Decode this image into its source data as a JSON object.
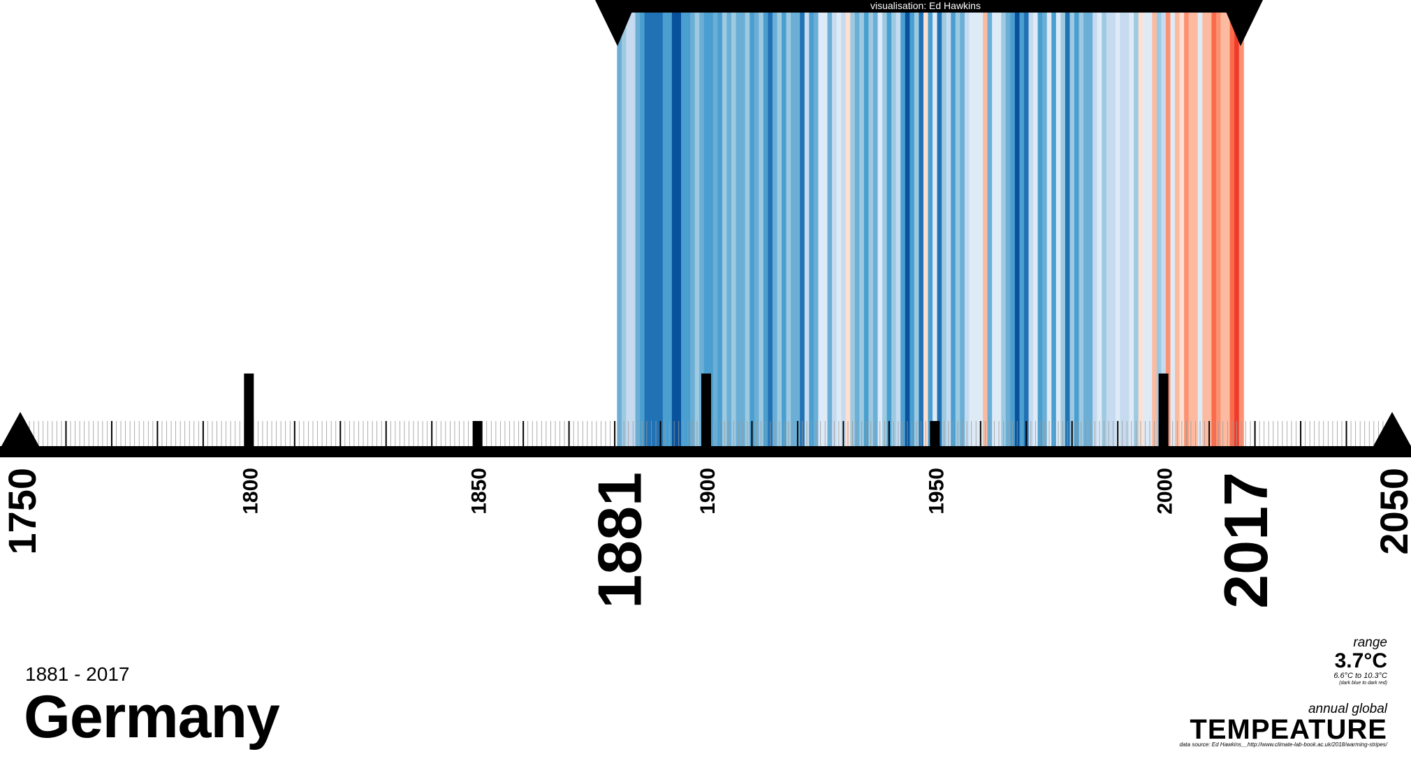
{
  "chart_data": {
    "type": "heatmap",
    "subtype": "warming-stripes",
    "title": "Germany",
    "subtitle": "1881 - 2017",
    "start_year": 1881,
    "end_year": 2017,
    "axis": {
      "xlim": [
        1750,
        2050
      ],
      "major_ticks": [
        "1800",
        "1850",
        "1900",
        "1950",
        "2000"
      ],
      "endpoint_labels": [
        "1750",
        "2050"
      ],
      "data_range_labels": [
        "1881",
        "2017"
      ]
    },
    "color_scale": {
      "min_color": "#08306b",
      "max_color": "#67000d",
      "from": "dark blue",
      "to": "dark red"
    },
    "stripe_levels": [
      3,
      4,
      5,
      5,
      3,
      2,
      1,
      1,
      1,
      1,
      2,
      2,
      0,
      0,
      2,
      2,
      3,
      4,
      3,
      2,
      2,
      3,
      2,
      4,
      3,
      4,
      3,
      3,
      4,
      2,
      3,
      4,
      2,
      1,
      3,
      4,
      2,
      4,
      3,
      3,
      1,
      5,
      2,
      3,
      6,
      6,
      3,
      5,
      6,
      5,
      7,
      4,
      3,
      4,
      2,
      4,
      3,
      6,
      4,
      2,
      4,
      5,
      2,
      0,
      2,
      4,
      1,
      7,
      2,
      6,
      1,
      4,
      5,
      2,
      4,
      3,
      5,
      6,
      6,
      6,
      8,
      3,
      6,
      6,
      4,
      3,
      2,
      0,
      2,
      1,
      5,
      6,
      2,
      3,
      6,
      2,
      6,
      4,
      1,
      4,
      2,
      4,
      3,
      3,
      5,
      6,
      4,
      5,
      5,
      6,
      5,
      5,
      6,
      4,
      7,
      6,
      6,
      8,
      4,
      5,
      9,
      6,
      8,
      7,
      9,
      8,
      8,
      6,
      8,
      8,
      10,
      9,
      8,
      8,
      10,
      11,
      9
    ]
  },
  "range": {
    "label": "range",
    "value": "3.7°C",
    "span": "6.6°C  to 10.3°C",
    "note": "(dark blue to dark red)"
  },
  "header": {
    "credit": "visualisation: Ed Hawkins"
  },
  "footer": {
    "period": "1881 - 2017",
    "country": "Germany",
    "annual_label": "annual global",
    "metric": "TEMPEATURE",
    "source": "data source: Ed Hawkins__http://www.climate-lab-book.ac.uk/2018/warming-stripes/"
  },
  "palette": [
    "#08519c",
    "#2171b5",
    "#4a9fd0",
    "#6baed6",
    "#9ecae1",
    "#c6dbef",
    "#deebf7",
    "#fee0d2",
    "#fcbba1",
    "#fc9272",
    "#fb6a4a",
    "#ef3b2c",
    "#cb181d",
    "#a50f15",
    "#67000d"
  ]
}
